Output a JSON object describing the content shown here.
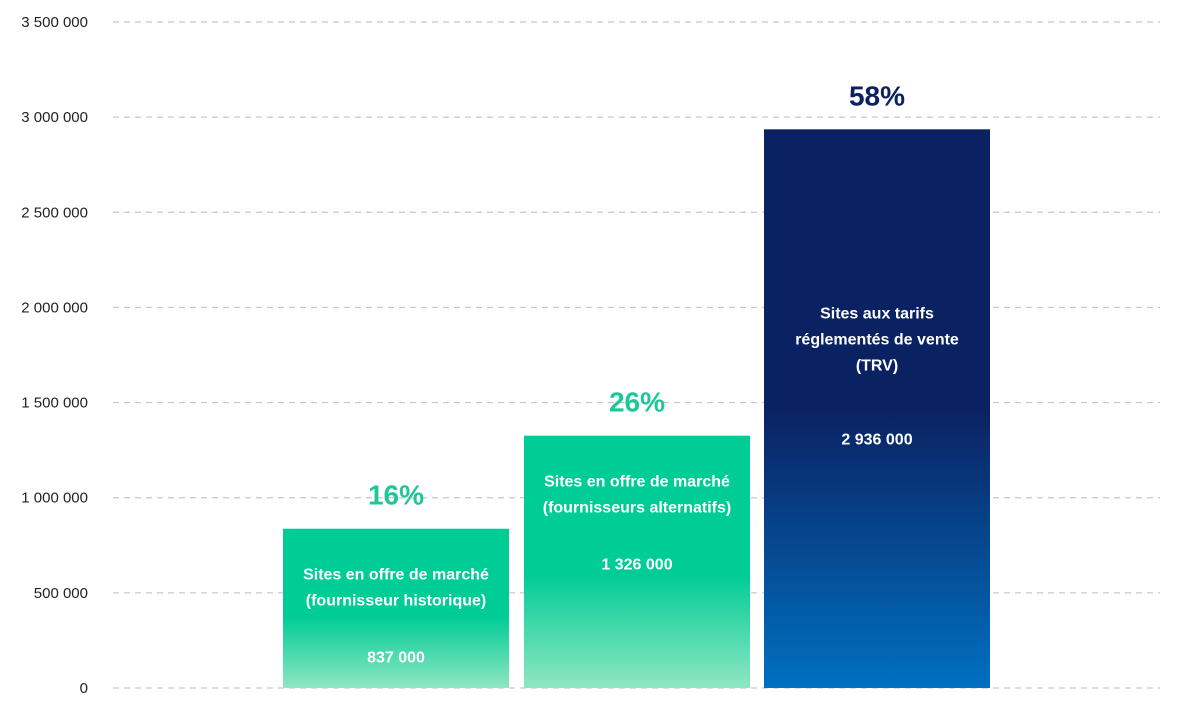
{
  "chart_data": {
    "type": "bar",
    "ylim": [
      0,
      3500000
    ],
    "grid": true,
    "y_ticks": [
      0,
      500000,
      1000000,
      1500000,
      2000000,
      2500000,
      3000000,
      3500000
    ],
    "y_tick_labels": [
      "0",
      "500 000",
      "1 000 000",
      "1 500 000",
      "2 000 000",
      "2 500 000",
      "3 000 000",
      "3 500 000"
    ],
    "bars": [
      {
        "label_lines": [
          "Sites en offre de marché",
          "(fournisseur historique)"
        ],
        "value": 837000,
        "value_label": "837 000",
        "percent_label": "16%",
        "color_top": "#00cc96",
        "color_bottom": "#8fe6c2",
        "percent_color": "#1ec896"
      },
      {
        "label_lines": [
          "Sites en offre de marché",
          "(fournisseurs alternatifs)"
        ],
        "value": 1326000,
        "value_label": "1 326 000",
        "percent_label": "26%",
        "color_top": "#00cc96",
        "color_bottom": "#8fe6c2",
        "percent_color": "#1ec896"
      },
      {
        "label_lines": [
          "Sites aux tarifs",
          "réglementés de vente",
          "(TRV)"
        ],
        "value": 2936000,
        "value_label": "2 936 000",
        "percent_label": "58%",
        "color_top": "#0b2262",
        "color_bottom": "#0070c0",
        "percent_color": "#0b2262"
      }
    ]
  }
}
